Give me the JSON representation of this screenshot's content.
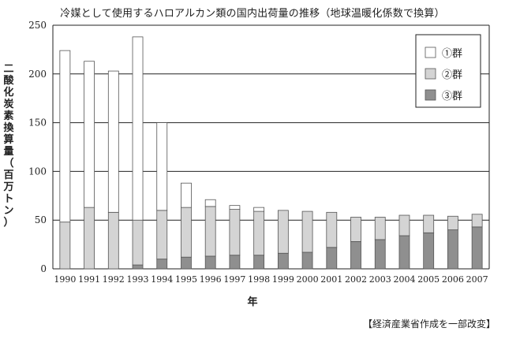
{
  "title": "冷媒として使用するハロアルカン類の国内出荷量の推移（地球温暖化係数で換算）",
  "source": "【経済産業省作成を一部改変】",
  "colors": {
    "group1": "#ffffff",
    "group2": "#d4d4d4",
    "group3": "#8f8f8f",
    "grid": "#222222"
  },
  "chart_data": {
    "type": "bar",
    "stacked": true,
    "categories": [
      "1990",
      "1991",
      "1992",
      "1993",
      "1994",
      "1995",
      "1996",
      "1997",
      "1998",
      "1999",
      "2000",
      "2001",
      "2002",
      "2003",
      "2004",
      "2005",
      "2006",
      "2007"
    ],
    "series": [
      {
        "name": "③群",
        "values": [
          0,
          0,
          0,
          4,
          10,
          12,
          13,
          14,
          14,
          16,
          17,
          22,
          28,
          30,
          34,
          37,
          40,
          43
        ]
      },
      {
        "name": "②群",
        "values": [
          48,
          63,
          58,
          46,
          50,
          51,
          51,
          47,
          45,
          44,
          42,
          36,
          25,
          23,
          21,
          18,
          14,
          13
        ]
      },
      {
        "name": "①群",
        "values": [
          176,
          150,
          145,
          188,
          90,
          25,
          7,
          4,
          4,
          0,
          0,
          0,
          0,
          0,
          0,
          0,
          0,
          0
        ]
      }
    ],
    "xlabel": "年",
    "ylabel": "二酸化炭素換算量（百万トン）",
    "ylim": [
      0,
      250
    ],
    "yticks": [
      0,
      50,
      100,
      150,
      200,
      250
    ],
    "grid": true,
    "legend": {
      "placement": "top-right",
      "entries": [
        "①群",
        "②群",
        "③群"
      ]
    }
  }
}
